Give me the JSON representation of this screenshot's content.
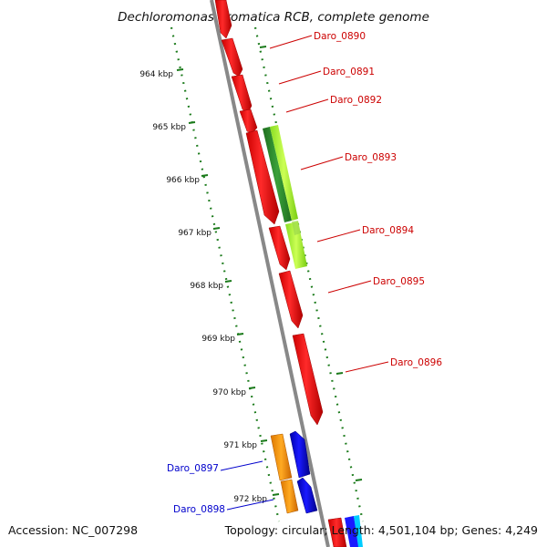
{
  "title": "Dechloromonas aromatica RCB, complete genome",
  "footer": {
    "accession": "Accession: NC_007298",
    "summary": "Topology: circular; Length: 4,501,104 bp; Genes: 4,249"
  },
  "ruler": {
    "unit": "kbp",
    "ticks": [
      "964 kbp",
      "965 kbp",
      "966 kbp",
      "967 kbp",
      "968 kbp",
      "969 kbp",
      "970 kbp",
      "971 kbp",
      "972 kbp"
    ]
  },
  "colors": {
    "forward_gene": "#ff0000",
    "reverse_gene": "#0000ff",
    "gene_label_forward": "#cc0000",
    "gene_label_reverse": "#0000cc",
    "backbone": "#888888",
    "ruler_dots": "#1a7a1a",
    "cds_light": "#aaff33",
    "cds_dark": "#2e8b2e",
    "orange": "#ff9900",
    "cyan": "#00ccff"
  },
  "genes": [
    {
      "name": "Daro_0890",
      "strand": "forward"
    },
    {
      "name": "Daro_0891",
      "strand": "forward"
    },
    {
      "name": "Daro_0892",
      "strand": "forward"
    },
    {
      "name": "Daro_0893",
      "strand": "forward"
    },
    {
      "name": "Daro_0894",
      "strand": "forward"
    },
    {
      "name": "Daro_0895",
      "strand": "forward"
    },
    {
      "name": "Daro_0896",
      "strand": "forward"
    },
    {
      "name": "Daro_0897",
      "strand": "reverse"
    },
    {
      "name": "Daro_0898",
      "strand": "reverse"
    }
  ]
}
